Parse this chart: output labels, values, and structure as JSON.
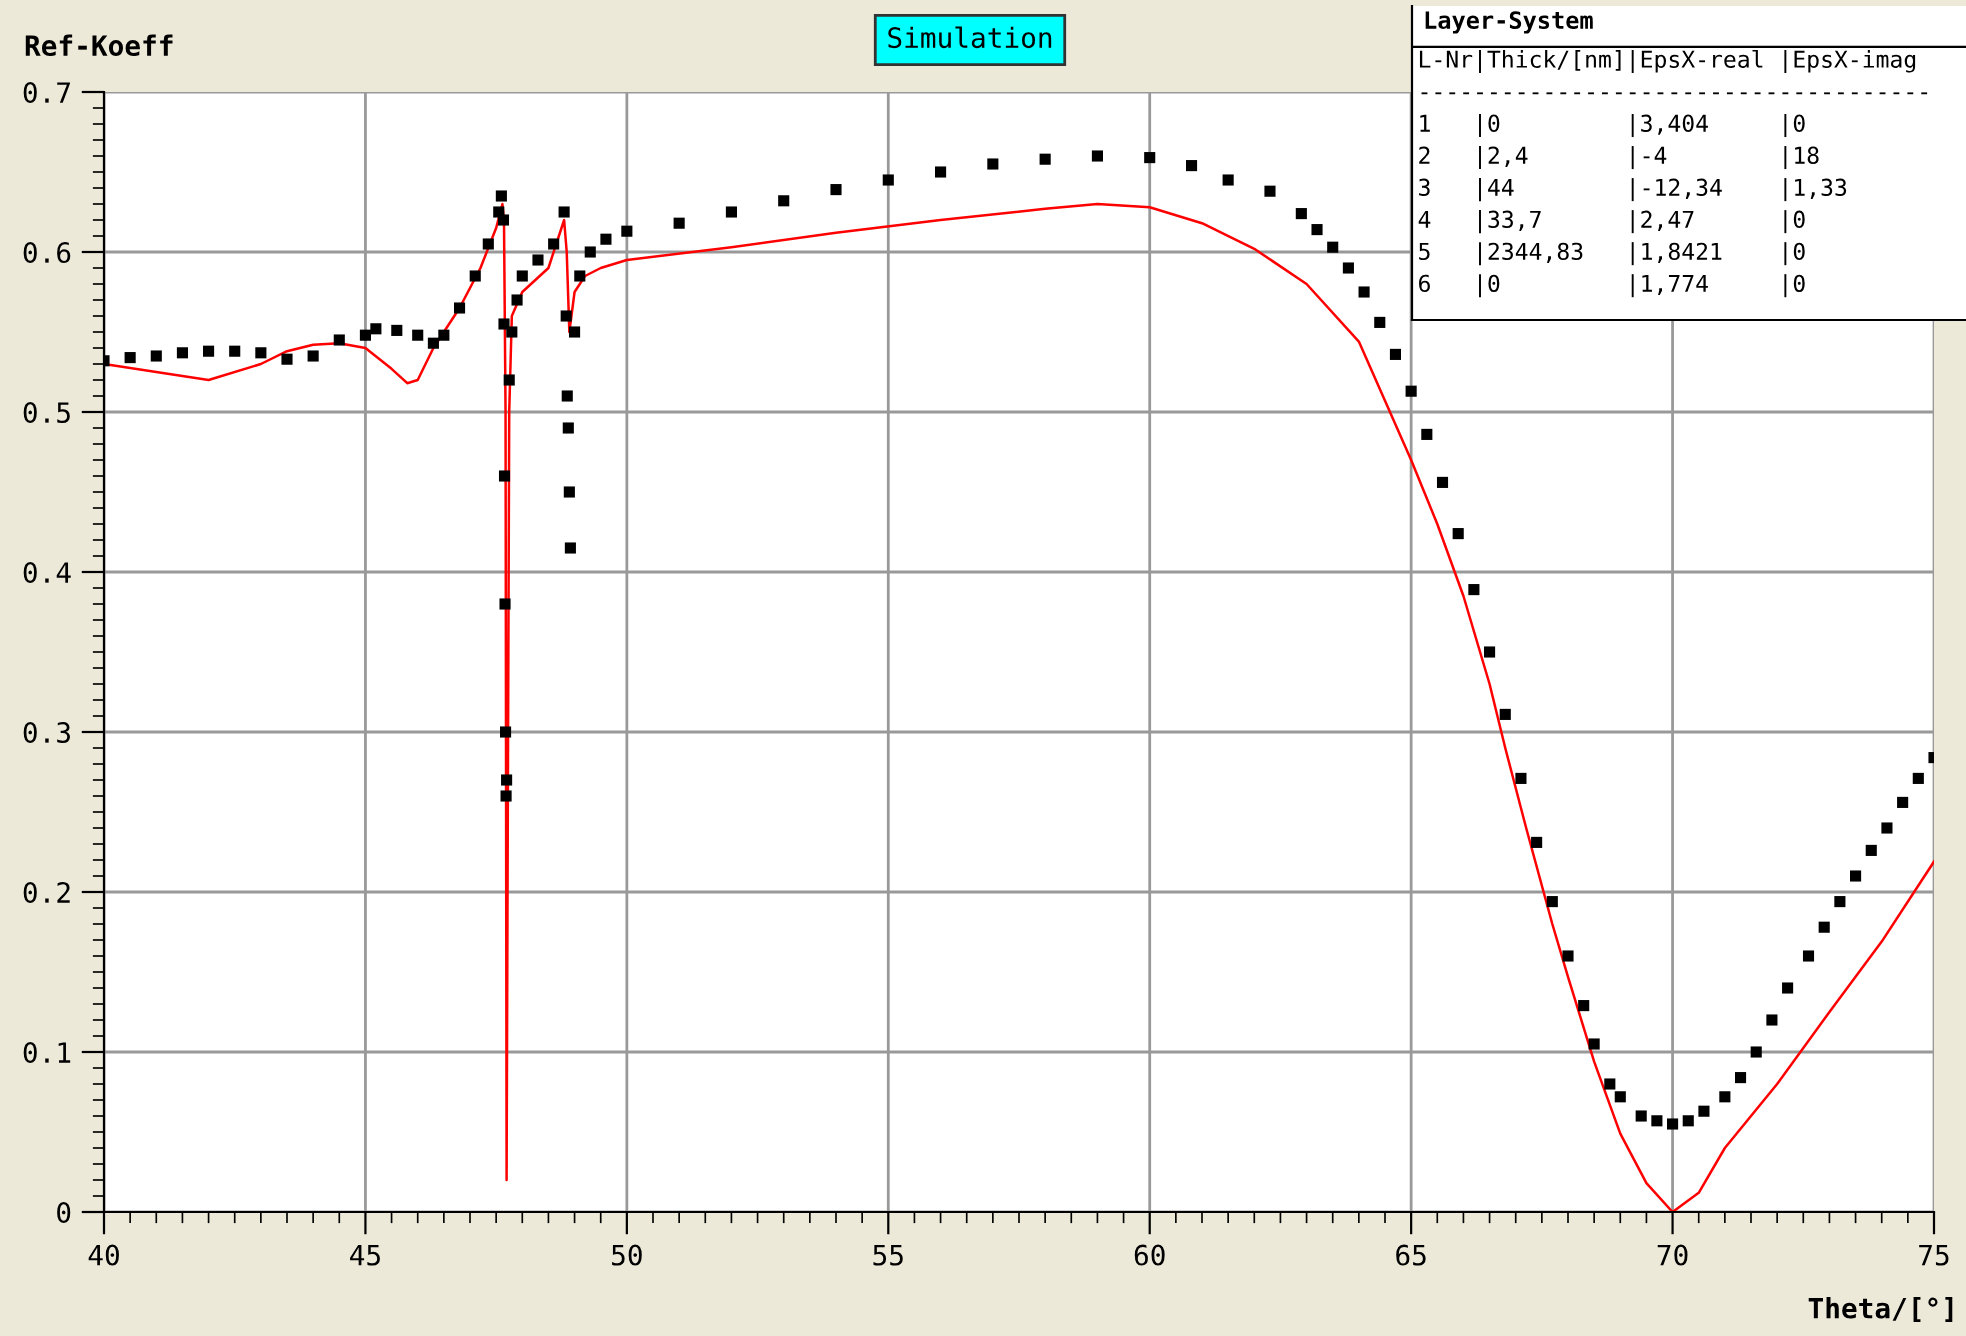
{
  "chart_data": {
    "type": "scatter",
    "ylabel": "Ref-Koeff",
    "xlabel": "Theta/[°]",
    "annotations": [
      "Simulation",
      "Layer-System",
      "L-Nr|Thick/[nm]|EpsX-real |EpsX-imag",
      "-------------------------------------",
      "1   |0         |3,404     |0",
      "2   |2,4       |-4        |18",
      "3   |44        |-12,34    |1,33",
      "4   |33,7      |2,47      |0",
      "5   |2344,83   |1,8421    |0",
      "6   |0         |1,774     |0"
    ],
    "xlim": [
      40,
      75
    ],
    "ylim": [
      0,
      0.7
    ],
    "xticks": [
      40,
      45,
      50,
      55,
      60,
      65,
      70,
      75
    ],
    "yticks": [
      0,
      0.1,
      0.2,
      0.3,
      0.4,
      0.5,
      0.6,
      0.7
    ],
    "grid": true,
    "legend": false,
    "series": [
      {
        "marker": "square",
        "color": "#000000",
        "x": [
          40,
          40.5,
          41,
          41.5,
          42,
          42.5,
          43,
          43.5,
          44,
          44.5,
          45,
          45.2,
          45.6,
          46,
          46.3,
          46.5,
          46.8,
          47.1,
          47.35,
          47.55,
          47.6,
          47.64,
          47.65,
          47.66,
          47.67,
          47.68,
          47.69,
          47.7,
          47.75,
          47.8,
          47.9,
          48.0,
          48.3,
          48.6,
          48.8,
          48.84,
          48.86,
          48.88,
          48.9,
          48.92,
          49.0,
          49.1,
          49.3,
          49.6,
          50,
          51,
          52,
          53,
          54,
          55,
          56,
          57,
          58,
          59,
          60,
          60.8,
          61.5,
          62.3,
          62.9,
          63.2,
          63.5,
          63.8,
          64.1,
          64.4,
          64.7,
          65.0,
          65.3,
          65.6,
          65.9,
          66.2,
          66.5,
          66.8,
          67.1,
          67.4,
          67.7,
          68.0,
          68.3,
          68.5,
          68.8,
          69.0,
          69.4,
          69.7,
          70.0,
          70.3,
          70.6,
          71.0,
          71.3,
          71.6,
          71.9,
          72.2,
          72.6,
          72.9,
          73.2,
          73.5,
          73.8,
          74.1,
          74.4,
          74.7,
          75.0
        ],
        "values": [
          0.532,
          0.534,
          0.535,
          0.537,
          0.538,
          0.538,
          0.537,
          0.533,
          0.535,
          0.545,
          0.548,
          0.552,
          0.551,
          0.548,
          0.543,
          0.548,
          0.565,
          0.585,
          0.605,
          0.625,
          0.635,
          0.62,
          0.555,
          0.46,
          0.38,
          0.3,
          0.26,
          0.27,
          0.52,
          0.55,
          0.57,
          0.585,
          0.595,
          0.605,
          0.625,
          0.56,
          0.51,
          0.49,
          0.45,
          0.415,
          0.55,
          0.585,
          0.6,
          0.608,
          0.613,
          0.618,
          0.625,
          0.632,
          0.639,
          0.645,
          0.65,
          0.655,
          0.658,
          0.66,
          0.659,
          0.654,
          0.645,
          0.638,
          0.624,
          0.614,
          0.603,
          0.59,
          0.575,
          0.556,
          0.536,
          0.513,
          0.486,
          0.456,
          0.424,
          0.389,
          0.35,
          0.311,
          0.271,
          0.231,
          0.194,
          0.16,
          0.129,
          0.105,
          0.08,
          0.072,
          0.06,
          0.057,
          0.055,
          0.057,
          0.063,
          0.072,
          0.084,
          0.1,
          0.12,
          0.14,
          0.16,
          0.178,
          0.194,
          0.21,
          0.226,
          0.24,
          0.256,
          0.271,
          0.284
        ]
      },
      {
        "type": "line",
        "marker": "none",
        "line_style": "solid",
        "color": "#ff0000",
        "x": [
          40,
          41,
          42,
          43,
          43.5,
          44,
          44.5,
          45,
          45.5,
          45.8,
          46,
          46.3,
          46.8,
          47.2,
          47.5,
          47.62,
          47.65,
          47.68,
          47.7,
          47.72,
          47.75,
          47.8,
          48.0,
          48.5,
          48.8,
          48.85,
          48.9,
          49.0,
          49.2,
          49.5,
          50,
          52,
          54,
          56,
          58,
          59,
          60,
          61,
          62,
          63,
          64,
          65,
          65.5,
          66,
          66.5,
          66.8,
          67.2,
          67.7,
          68,
          68.5,
          69,
          69.5,
          70,
          70.5,
          71,
          72,
          73,
          74,
          75
        ],
        "values": [
          0.53,
          0.525,
          0.52,
          0.53,
          0.538,
          0.542,
          0.543,
          0.54,
          0.527,
          0.518,
          0.52,
          0.54,
          0.565,
          0.59,
          0.615,
          0.63,
          0.62,
          0.5,
          0.02,
          0.22,
          0.5,
          0.56,
          0.575,
          0.59,
          0.62,
          0.6,
          0.55,
          0.575,
          0.585,
          0.59,
          0.595,
          0.603,
          0.612,
          0.62,
          0.627,
          0.63,
          0.628,
          0.618,
          0.602,
          0.58,
          0.544,
          0.47,
          0.43,
          0.385,
          0.33,
          0.29,
          0.24,
          0.18,
          0.147,
          0.094,
          0.049,
          0.018,
          0.0,
          0.012,
          0.04,
          0.08,
          0.125,
          0.169,
          0.219
        ]
      }
    ]
  }
}
